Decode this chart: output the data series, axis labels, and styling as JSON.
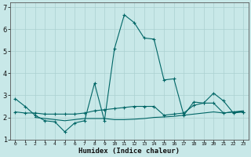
{
  "xlabel": "Humidex (Indice chaleur)",
  "bg_color": "#c8e8e8",
  "grid_color": "#aad0d0",
  "line_color": "#006666",
  "xlim": [
    -0.5,
    23.5
  ],
  "ylim": [
    1.0,
    7.2
  ],
  "yticks": [
    1,
    2,
    3,
    4,
    5,
    6,
    7
  ],
  "xticks": [
    0,
    1,
    2,
    3,
    4,
    5,
    6,
    7,
    8,
    9,
    10,
    11,
    12,
    13,
    14,
    15,
    16,
    17,
    18,
    19,
    20,
    21,
    22,
    23
  ],
  "s1_x": [
    0,
    1,
    2,
    3,
    4,
    5,
    6,
    7,
    8,
    9,
    10,
    11,
    12,
    13,
    14,
    15,
    16,
    17,
    18,
    19,
    20,
    21,
    22,
    23
  ],
  "s1_y": [
    2.85,
    2.5,
    2.1,
    1.85,
    1.8,
    1.35,
    1.75,
    1.85,
    3.55,
    1.85,
    5.1,
    6.65,
    6.3,
    5.6,
    5.55,
    3.7,
    3.75,
    2.1,
    2.7,
    2.65,
    3.1,
    2.75,
    2.2,
    2.25
  ],
  "s2_x": [
    0,
    1,
    2,
    3,
    4,
    5,
    6,
    7,
    8,
    9,
    10,
    11,
    12,
    13,
    14,
    15,
    16,
    17,
    18,
    19,
    20,
    21,
    22,
    23
  ],
  "s2_y": [
    2.25,
    2.2,
    2.2,
    2.15,
    2.15,
    2.15,
    2.15,
    2.2,
    2.3,
    2.35,
    2.4,
    2.45,
    2.5,
    2.5,
    2.5,
    2.1,
    2.15,
    2.2,
    2.55,
    2.65,
    2.65,
    2.2,
    2.25,
    2.25
  ],
  "s3_x": [
    2,
    3,
    4,
    5,
    6,
    7,
    8,
    9,
    10,
    11,
    12,
    13,
    14,
    15,
    16,
    17,
    18,
    19,
    20,
    21,
    22,
    23
  ],
  "s3_y": [
    2.0,
    1.95,
    1.9,
    1.85,
    1.9,
    1.95,
    1.95,
    1.95,
    1.9,
    1.9,
    1.92,
    1.95,
    2.0,
    2.02,
    2.05,
    2.1,
    2.15,
    2.2,
    2.25,
    2.2,
    2.25,
    2.3
  ]
}
